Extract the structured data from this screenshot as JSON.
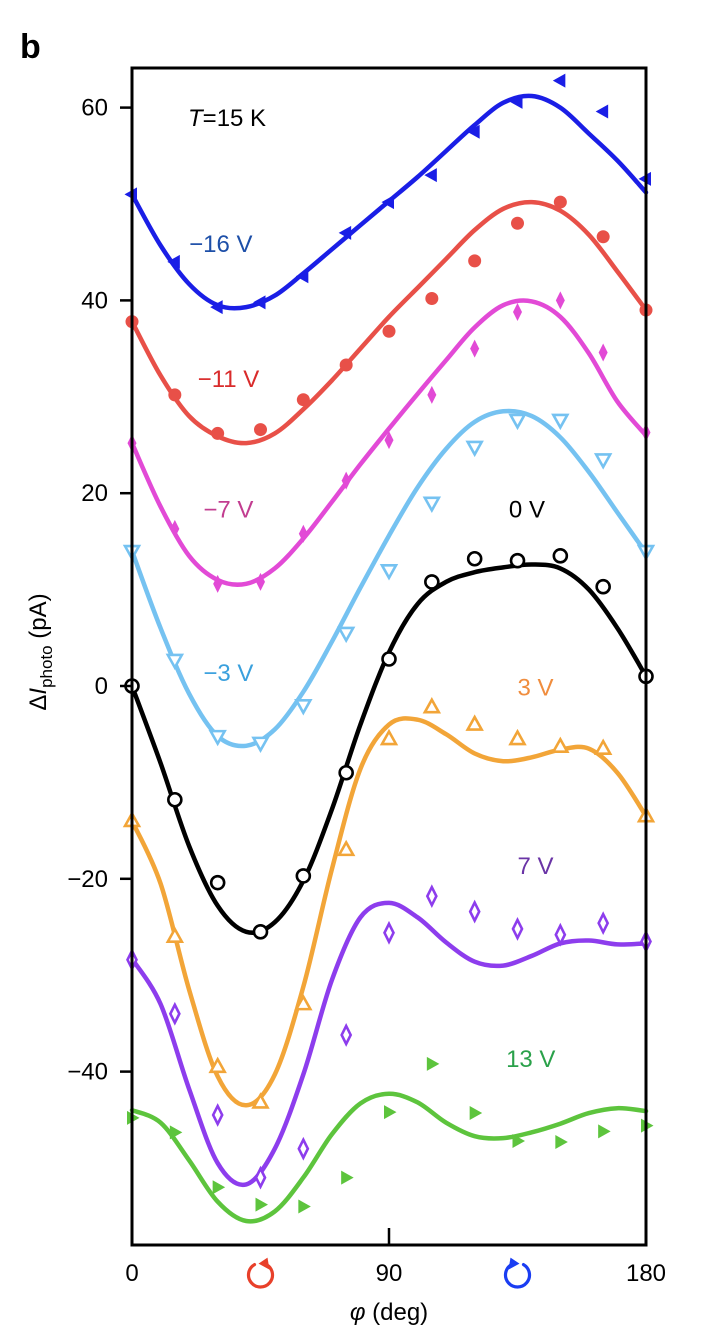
{
  "panel_letter": "b",
  "chart_data": {
    "type": "scatter",
    "title": "",
    "annotation": {
      "symbol": "T",
      "rest": "=15 K"
    },
    "xlabel": {
      "symbol": "φ",
      "rest": " (deg)"
    },
    "ylabel": {
      "prefix": "Δ",
      "symbol": "I",
      "subscript": "photo",
      "rest": " (pA)"
    },
    "xlim": [
      0,
      180
    ],
    "ylim": [
      -58,
      65
    ],
    "xticks": [
      0,
      90,
      180
    ],
    "xtick_labels": [
      "0",
      "90",
      "180"
    ],
    "yticks": [
      60,
      40,
      20,
      0,
      -20,
      -40
    ],
    "ytick_labels": [
      "60",
      "40",
      "20",
      "0",
      "−20",
      "−40"
    ],
    "grid": false,
    "legend": "none (labels placed next to curves)",
    "axis_icons": [
      {
        "name": "counterclockwise-rotation-icon",
        "x": 45,
        "color": "#e8402a"
      },
      {
        "name": "clockwise-rotation-icon",
        "x": 135,
        "color": "#1a3df2"
      }
    ],
    "series": [
      {
        "name": "−16 V",
        "color": "#1a1ee6",
        "label_color": "#1d4fa8",
        "marker": "triangle-left",
        "filled": true,
        "label_pos": [
          20,
          45
        ],
        "x": [
          0,
          15,
          30,
          45,
          60,
          75,
          90,
          105,
          120,
          135,
          150,
          165,
          180
        ],
        "y": [
          51,
          44,
          39.3,
          39.8,
          42.5,
          47,
          50.2,
          53,
          57.5,
          60.6,
          62.8,
          59.6,
          52.6
        ],
        "fit_x": [
          0,
          10,
          20,
          30,
          40,
          50,
          60,
          70,
          80,
          90,
          100,
          110,
          120,
          130,
          140,
          150,
          160,
          170,
          180
        ],
        "fit_y": [
          51,
          45.7,
          41.7,
          39.5,
          39.3,
          40.5,
          42.8,
          45.3,
          47.8,
          50.3,
          52.8,
          55.5,
          58.2,
          60.5,
          61.2,
          60,
          57.3,
          54.5,
          51.2
        ]
      },
      {
        "name": "−11 V",
        "color": "#e85048",
        "label_color": "#d92b2b",
        "marker": "circle",
        "filled": true,
        "label_pos": [
          23,
          31
        ],
        "x": [
          0,
          15,
          30,
          45,
          60,
          75,
          90,
          105,
          120,
          135,
          150,
          165,
          180
        ],
        "y": [
          37.8,
          30.2,
          26.2,
          26.6,
          29.7,
          33.3,
          36.8,
          40.2,
          44.1,
          48,
          50.2,
          46.6,
          39
        ],
        "fit_x": [
          0,
          10,
          20,
          30,
          40,
          50,
          60,
          70,
          80,
          90,
          100,
          110,
          120,
          130,
          140,
          150,
          160,
          170,
          180
        ],
        "fit_y": [
          37.8,
          32.2,
          28,
          25.9,
          25.2,
          26.2,
          28.7,
          31.7,
          35,
          38.3,
          41.3,
          44.3,
          47.3,
          49.5,
          50.2,
          49.3,
          46.8,
          43,
          39
        ]
      },
      {
        "name": "−7 V",
        "color": "#e24ad6",
        "label_color": "#c23d90",
        "marker": "thin-diamond",
        "filled": true,
        "label_pos": [
          25,
          17.5
        ],
        "x": [
          0,
          15,
          30,
          45,
          60,
          75,
          90,
          105,
          120,
          135,
          150,
          165,
          180
        ],
        "y": [
          25.2,
          16.3,
          10.6,
          10.8,
          15.8,
          21.3,
          25.5,
          30.2,
          35,
          38.8,
          40,
          34.6,
          26.3
        ],
        "fit_x": [
          0,
          10,
          20,
          30,
          40,
          50,
          60,
          70,
          80,
          90,
          100,
          110,
          120,
          130,
          140,
          150,
          160,
          170,
          180
        ],
        "fit_y": [
          25.2,
          18.6,
          13.5,
          11,
          10.6,
          12.2,
          15.3,
          19.1,
          23,
          26.7,
          30.3,
          33.8,
          37.2,
          39.5,
          39.9,
          38.3,
          34.5,
          29.5,
          26
        ]
      },
      {
        "name": "−3 V",
        "color": "#75c2f1",
        "label_color": "#3aa0dd",
        "marker": "triangle-down",
        "filled": false,
        "label_pos": [
          25,
          0.5
        ],
        "x": [
          0,
          15,
          30,
          45,
          60,
          75,
          90,
          105,
          120,
          135,
          150,
          165,
          180
        ],
        "y": [
          14,
          2.7,
          -5.2,
          -5.9,
          -2,
          5.5,
          12,
          19,
          24.8,
          27.6,
          27.6,
          23.5,
          14
        ],
        "fit_x": [
          0,
          10,
          20,
          30,
          40,
          50,
          60,
          70,
          80,
          90,
          100,
          110,
          120,
          130,
          140,
          150,
          160,
          170,
          180
        ],
        "fit_y": [
          14,
          6,
          -0.8,
          -5.2,
          -6.2,
          -4.5,
          -0.6,
          4.6,
          10.2,
          15.6,
          20.6,
          24.6,
          27.4,
          28.5,
          28,
          25.8,
          22.2,
          18,
          13.8
        ]
      },
      {
        "name": "0 V",
        "color": "#000000",
        "label_color": "#000000",
        "marker": "circle",
        "filled": false,
        "label_pos": [
          132,
          17.5
        ],
        "x": [
          0,
          15,
          30,
          45,
          60,
          75,
          90,
          105,
          120,
          135,
          150,
          165,
          180
        ],
        "y": [
          0,
          -11.8,
          -20.4,
          -25.5,
          -19.7,
          -9,
          2.8,
          10.8,
          13.2,
          13,
          13.5,
          10.3,
          1
        ],
        "fit_x": [
          0,
          10,
          20,
          30,
          40,
          50,
          60,
          70,
          80,
          90,
          100,
          110,
          120,
          130,
          140,
          150,
          160,
          170,
          180
        ],
        "fit_y": [
          0,
          -8,
          -16.6,
          -22.8,
          -25.5,
          -24.5,
          -20.2,
          -12.8,
          -4,
          3.5,
          8.5,
          10.8,
          11.8,
          12.3,
          12.6,
          12.2,
          10,
          6,
          1
        ]
      },
      {
        "name": "3 V",
        "color": "#f2a538",
        "label_color": "#f08d3e",
        "marker": "triangle-up",
        "filled": false,
        "label_pos": [
          135,
          -1
        ],
        "x": [
          0,
          15,
          30,
          45,
          60,
          75,
          90,
          105,
          120,
          135,
          150,
          165,
          180
        ],
        "y": [
          -14,
          -26,
          -39.5,
          -43.2,
          -33,
          -17,
          -5.5,
          -2.2,
          -4,
          -5.5,
          -6.3,
          -6.5,
          -13.5
        ],
        "fit_x": [
          0,
          10,
          20,
          30,
          40,
          50,
          60,
          70,
          80,
          90,
          100,
          110,
          120,
          130,
          140,
          150,
          160,
          170,
          180
        ],
        "fit_y": [
          -14,
          -20.5,
          -31.5,
          -40.5,
          -43.5,
          -40.3,
          -31.2,
          -19,
          -8.6,
          -4,
          -3.5,
          -5,
          -7,
          -7.8,
          -7.4,
          -6.6,
          -6.5,
          -9,
          -13.5
        ]
      },
      {
        "name": "7 V",
        "color": "#8d3ded",
        "label_color": "#6a34a6",
        "marker": "thin-diamond",
        "filled": false,
        "label_pos": [
          135,
          -19.5
        ],
        "x": [
          0,
          15,
          30,
          45,
          60,
          75,
          90,
          105,
          120,
          135,
          150,
          165,
          180
        ],
        "y": [
          -28.4,
          -34,
          -44.5,
          -51,
          -48,
          -36.2,
          -25.6,
          -21.8,
          -23.4,
          -25.2,
          -25.8,
          -24.6,
          -26.5
        ],
        "fit_x": [
          0,
          10,
          20,
          30,
          40,
          50,
          60,
          70,
          80,
          90,
          100,
          110,
          120,
          130,
          140,
          150,
          160,
          170,
          180
        ],
        "fit_y": [
          -28.3,
          -33,
          -41.8,
          -49.5,
          -51.7,
          -48,
          -40.3,
          -30.5,
          -24,
          -22.5,
          -24,
          -26.6,
          -28.6,
          -29,
          -28,
          -26.7,
          -26.4,
          -26.8,
          -26.7
        ]
      },
      {
        "name": "13 V",
        "color": "#5dc43d",
        "label_color": "#2aa14a",
        "marker": "triangle-right",
        "filled": true,
        "label_pos": [
          131,
          -39.5
        ],
        "x": [
          0,
          15,
          30,
          45,
          60,
          75,
          90,
          105,
          120,
          135,
          150,
          165,
          180
        ],
        "y": [
          -44.8,
          -46.3,
          -52,
          -53.8,
          -54,
          -51,
          -44.2,
          -39.2,
          -44.3,
          -47.2,
          -47.3,
          -46.2,
          -45.6
        ],
        "fit_x": [
          0,
          10,
          20,
          30,
          40,
          50,
          60,
          70,
          80,
          90,
          100,
          110,
          120,
          130,
          140,
          150,
          160,
          170,
          180
        ],
        "fit_y": [
          -44,
          -45.3,
          -49.2,
          -53.5,
          -55.5,
          -54.5,
          -51,
          -46.5,
          -43.3,
          -42.3,
          -43.2,
          -45.3,
          -46.7,
          -46.9,
          -46.3,
          -45.4,
          -44.3,
          -43.8,
          -44.1
        ]
      }
    ]
  }
}
